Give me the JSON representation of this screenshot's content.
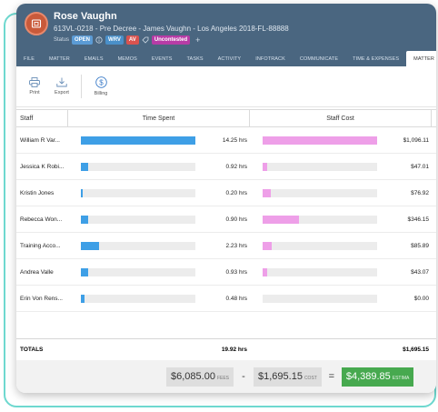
{
  "header": {
    "name": "Rose Vaughn",
    "subtitle": "613VL-0218 - Pre Decree - James Vaughn - Los Angeles 2018-FL-88888",
    "status_label": "Status",
    "status_value": "OPEN",
    "tag_wrv": "WRV",
    "tag_av": "AV",
    "tag_uncontested": "Uncontested",
    "add_symbol": "+",
    "colors": {
      "header_bg": "#4a6680",
      "open": "#5b9bd5",
      "wrv": "#4a90c9",
      "av": "#d9534f",
      "uncontested": "#b73ca6"
    }
  },
  "tabs": [
    "FILE",
    "MATTER",
    "EMAILS",
    "MEMOS",
    "EVENTS",
    "TASKS",
    "ACTIVITY",
    "INFOTRACK",
    "COMMUNICATE",
    "TIME & EXPENSES",
    "MATTER INSIG"
  ],
  "active_tab": "MATTER INSIG",
  "toolbar": {
    "print": "Print",
    "export": "Export",
    "billing": "Billing"
  },
  "table": {
    "columns": {
      "staff": "Staff",
      "time": "Time Spent",
      "cost": "Staff Cost"
    },
    "rows": [
      {
        "staff": "William R Var...",
        "hours": 14.25,
        "hours_text": "14.25 hrs",
        "cost": 1096.11,
        "cost_text": "$1,096.11"
      },
      {
        "staff": "Jessica K Robi...",
        "hours": 0.92,
        "hours_text": "0.92 hrs",
        "cost": 47.01,
        "cost_text": "$47.01"
      },
      {
        "staff": "Kristin Jones",
        "hours": 0.2,
        "hours_text": "0.20 hrs",
        "cost": 76.92,
        "cost_text": "$76.92"
      },
      {
        "staff": "Rebecca Won...",
        "hours": 0.9,
        "hours_text": "0.90 hrs",
        "cost": 346.15,
        "cost_text": "$346.15"
      },
      {
        "staff": "Training Acco...",
        "hours": 2.23,
        "hours_text": "2.23 hrs",
        "cost": 85.89,
        "cost_text": "$85.89"
      },
      {
        "staff": "Andrea Valle",
        "hours": 0.93,
        "hours_text": "0.93 hrs",
        "cost": 43.07,
        "cost_text": "$43.07"
      },
      {
        "staff": "Erin Von Rens...",
        "hours": 0.48,
        "hours_text": "0.48 hrs",
        "cost": 0.0,
        "cost_text": "$0.00"
      }
    ],
    "max_hours": 14.25,
    "max_cost": 1096.11,
    "totals_label": "TOTALS",
    "total_hours": "19.92 hrs",
    "total_cost": "$1,695.15"
  },
  "footer": {
    "fees_value": "$6,085.00",
    "fees_label": "FEES",
    "minus": "-",
    "cost_value": "$1,695.15",
    "cost_label": "COST",
    "equals": "=",
    "estimate_value": "$4,389.85",
    "estimate_label": "ESTIMA"
  }
}
